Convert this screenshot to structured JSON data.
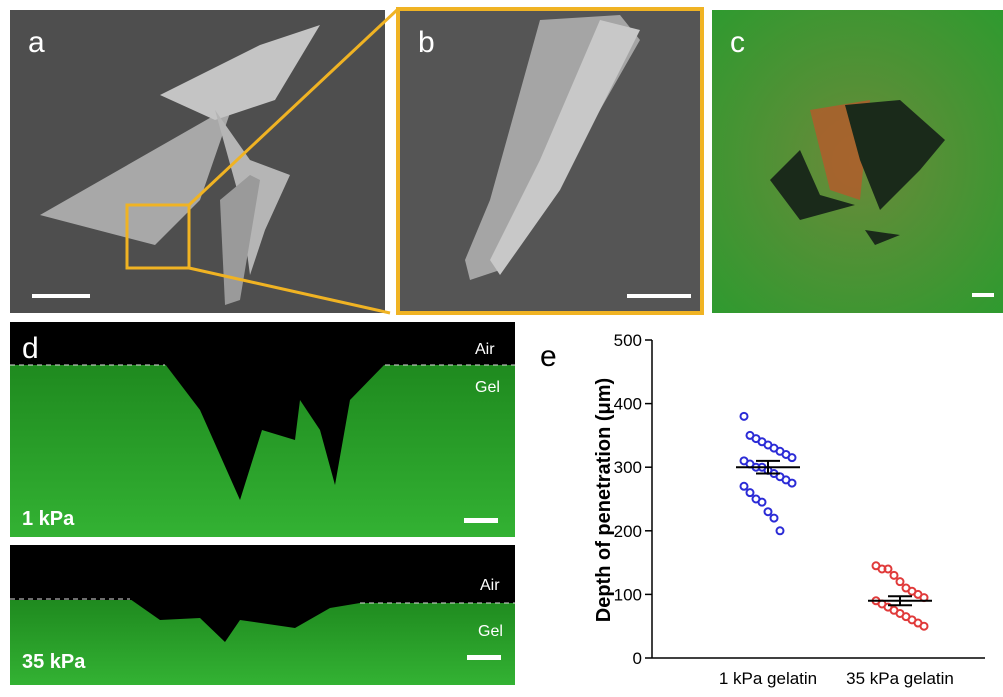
{
  "panels": {
    "a": {
      "label": "a"
    },
    "b": {
      "label": "b"
    },
    "c": {
      "label": "c"
    },
    "d": {
      "label": "d",
      "top": {
        "air": "Air",
        "gel": "Gel",
        "stiffness": "1 kPa"
      },
      "bottom": {
        "air": "Air",
        "gel": "Gel",
        "stiffness": "35 kPa"
      }
    },
    "e": {
      "label": "e"
    }
  },
  "chart_data": {
    "type": "scatter",
    "y_label": "Depth of penetration (μm)",
    "categories": [
      "1 kPa gelatin",
      "35 kPa gelatin"
    ],
    "ylim": [
      0,
      500
    ],
    "yticks": [
      0,
      100,
      200,
      300,
      400,
      500
    ],
    "series": [
      {
        "name": "1 kPa gelatin",
        "color": "#2b2bd6",
        "mean": 300,
        "error": 10,
        "values": [
          380,
          350,
          345,
          340,
          335,
          330,
          325,
          320,
          315,
          310,
          305,
          300,
          300,
          295,
          290,
          285,
          280,
          275,
          270,
          260,
          250,
          245,
          230,
          220,
          200
        ]
      },
      {
        "name": "35 kPa gelatin",
        "color": "#e03a3a",
        "mean": 90,
        "error": 7,
        "values": [
          145,
          140,
          140,
          130,
          120,
          110,
          105,
          100,
          95,
          90,
          85,
          80,
          75,
          70,
          65,
          60,
          55,
          50
        ]
      }
    ]
  }
}
